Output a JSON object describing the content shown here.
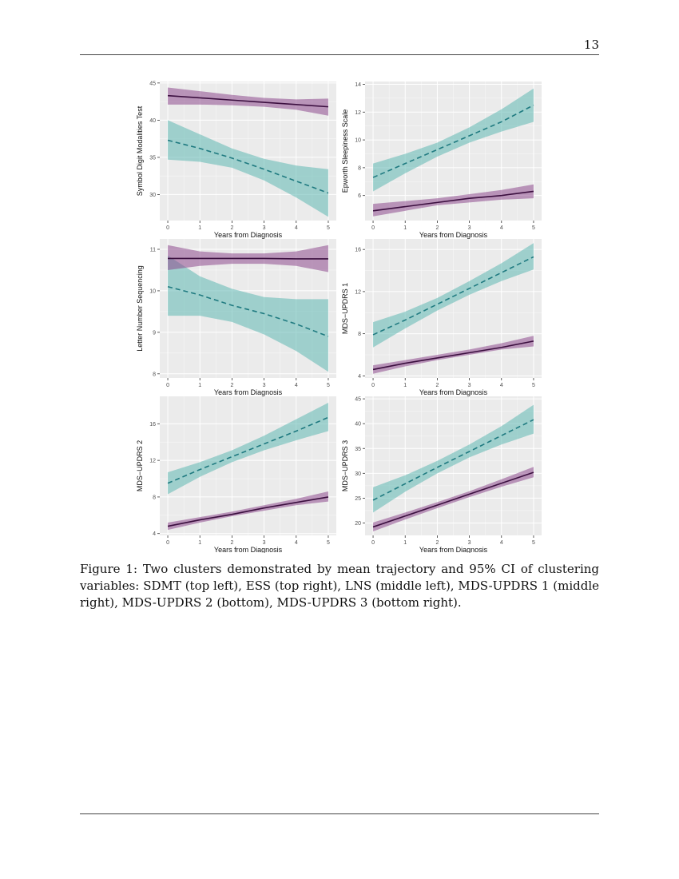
{
  "page_number": "13",
  "caption": "Figure 1: Two clusters demonstrated by mean trajectory and 95% CI of clustering variables: SDMT (top left), ESS (top right), LNS (middle left), MDS-UPDRS 1 (middle right), MDS-UPDRS 2 (bottom), MDS-UPDRS 3 (bottom right).",
  "colors": {
    "panel_background": "#ebebeb",
    "grid": "#ffffff",
    "cluster_purple_line": "#3b0f3f",
    "cluster_purple_band": "#8e4a8e",
    "cluster_teal_line": "#1f7a80",
    "cluster_teal_band": "#5fb8b2"
  },
  "chart_data": [
    {
      "type": "line",
      "ylabel": "Symbol Digit Modalities Test",
      "xlabel": "Years from Diagnosis",
      "x_ticks": [
        0,
        1,
        2,
        3,
        4,
        5
      ],
      "y_ticks": [
        30,
        35,
        40,
        45
      ],
      "xlim": [
        -0.25,
        5.25
      ],
      "ylim": [
        26.5,
        45.2
      ],
      "grid": true,
      "series": [
        {
          "line_style": "solid",
          "color": "#3b0f3f",
          "band_color": "#8e4a8e",
          "x": [
            0,
            1,
            2,
            3,
            4,
            5
          ],
          "y": [
            43.3,
            43.0,
            42.7,
            42.4,
            42.1,
            41.8
          ],
          "lower": [
            42.1,
            42.1,
            42.0,
            41.8,
            41.4,
            40.6
          ],
          "upper": [
            44.4,
            43.9,
            43.4,
            43.0,
            42.8,
            42.9
          ]
        },
        {
          "line_style": "dashed",
          "color": "#1f7a80",
          "band_color": "#5fb8b2",
          "x": [
            0,
            1,
            2,
            3,
            4,
            5
          ],
          "y": [
            37.3,
            36.2,
            34.9,
            33.4,
            31.8,
            30.2
          ],
          "lower": [
            34.7,
            34.4,
            33.6,
            31.9,
            29.6,
            27.0
          ],
          "upper": [
            40.0,
            38.1,
            36.2,
            34.8,
            33.9,
            33.4
          ]
        }
      ]
    },
    {
      "type": "line",
      "ylabel": "Epworth Sleepiness Scale",
      "xlabel": "Years from Diagnosis",
      "x_ticks": [
        0,
        1,
        2,
        3,
        4,
        5
      ],
      "y_ticks": [
        6,
        8,
        10,
        12,
        14
      ],
      "xlim": [
        -0.25,
        5.25
      ],
      "ylim": [
        4.2,
        14.2
      ],
      "grid": true,
      "series": [
        {
          "line_style": "solid",
          "color": "#3b0f3f",
          "band_color": "#8e4a8e",
          "x": [
            0,
            1,
            2,
            3,
            4,
            5
          ],
          "y": [
            4.9,
            5.2,
            5.5,
            5.8,
            6.0,
            6.3
          ],
          "lower": [
            4.5,
            4.9,
            5.3,
            5.5,
            5.7,
            5.8
          ],
          "upper": [
            5.4,
            5.6,
            5.8,
            6.1,
            6.4,
            6.8
          ]
        },
        {
          "line_style": "dashed",
          "color": "#1f7a80",
          "band_color": "#5fb8b2",
          "x": [
            0,
            1,
            2,
            3,
            4,
            5
          ],
          "y": [
            7.3,
            8.3,
            9.3,
            10.3,
            11.3,
            12.5
          ],
          "lower": [
            6.3,
            7.6,
            8.8,
            9.8,
            10.6,
            11.3
          ],
          "upper": [
            8.3,
            9.0,
            9.8,
            10.9,
            12.2,
            13.7
          ]
        }
      ]
    },
    {
      "type": "line",
      "ylabel": "Letter Number Sequencing",
      "xlabel": "Years from Diagnosis",
      "x_ticks": [
        0,
        1,
        2,
        3,
        4,
        5
      ],
      "y_ticks": [
        8,
        9,
        10,
        11
      ],
      "xlim": [
        -0.25,
        5.25
      ],
      "ylim": [
        7.9,
        11.25
      ],
      "grid": true,
      "series": [
        {
          "line_style": "solid",
          "color": "#3b0f3f",
          "band_color": "#8e4a8e",
          "x": [
            0,
            1,
            2,
            3,
            4,
            5
          ],
          "y": [
            10.78,
            10.78,
            10.78,
            10.78,
            10.77,
            10.77
          ],
          "lower": [
            10.5,
            10.6,
            10.65,
            10.65,
            10.6,
            10.45
          ],
          "upper": [
            11.1,
            10.95,
            10.9,
            10.9,
            10.95,
            11.1
          ]
        },
        {
          "line_style": "dashed",
          "color": "#1f7a80",
          "band_color": "#5fb8b2",
          "x": [
            0,
            1,
            2,
            3,
            4,
            5
          ],
          "y": [
            10.1,
            9.9,
            9.65,
            9.45,
            9.2,
            8.9
          ],
          "lower": [
            9.4,
            9.4,
            9.25,
            8.95,
            8.55,
            8.05
          ],
          "upper": [
            10.85,
            10.35,
            10.05,
            9.85,
            9.8,
            9.8
          ]
        }
      ]
    },
    {
      "type": "line",
      "ylabel": "MDS−UPDRS 1",
      "xlabel": "Years from Diagnosis",
      "x_ticks": [
        0,
        1,
        2,
        3,
        4,
        5
      ],
      "y_ticks": [
        4,
        8,
        12,
        16
      ],
      "xlim": [
        -0.25,
        5.25
      ],
      "ylim": [
        3.8,
        17.0
      ],
      "grid": true,
      "series": [
        {
          "line_style": "solid",
          "color": "#3b0f3f",
          "band_color": "#8e4a8e",
          "x": [
            0,
            1,
            2,
            3,
            4,
            5
          ],
          "y": [
            4.6,
            5.2,
            5.7,
            6.2,
            6.7,
            7.3
          ],
          "lower": [
            4.2,
            4.9,
            5.5,
            6.0,
            6.5,
            6.8
          ],
          "upper": [
            5.0,
            5.5,
            6.0,
            6.5,
            7.1,
            7.8
          ]
        },
        {
          "line_style": "dashed",
          "color": "#1f7a80",
          "band_color": "#5fb8b2",
          "x": [
            0,
            1,
            2,
            3,
            4,
            5
          ],
          "y": [
            7.9,
            9.3,
            10.8,
            12.3,
            13.8,
            15.3
          ],
          "lower": [
            6.7,
            8.5,
            10.2,
            11.7,
            13.0,
            14.1
          ],
          "upper": [
            9.1,
            10.1,
            11.4,
            13.0,
            14.7,
            16.6
          ]
        }
      ]
    },
    {
      "type": "line",
      "ylabel": "MDS−UPDRS 2",
      "xlabel": "Years from Diagnosis",
      "x_ticks": [
        0,
        1,
        2,
        3,
        4,
        5
      ],
      "y_ticks": [
        4,
        8,
        12,
        16
      ],
      "xlim": [
        -0.25,
        5.25
      ],
      "ylim": [
        3.8,
        19.0
      ],
      "grid": true,
      "series": [
        {
          "line_style": "solid",
          "color": "#3b0f3f",
          "band_color": "#8e4a8e",
          "x": [
            0,
            1,
            2,
            3,
            4,
            5
          ],
          "y": [
            4.8,
            5.5,
            6.1,
            6.8,
            7.4,
            8.0
          ],
          "lower": [
            4.4,
            5.2,
            5.9,
            6.5,
            7.1,
            7.5
          ],
          "upper": [
            5.2,
            5.8,
            6.4,
            7.1,
            7.8,
            8.6
          ]
        },
        {
          "line_style": "dashed",
          "color": "#1f7a80",
          "band_color": "#5fb8b2",
          "x": [
            0,
            1,
            2,
            3,
            4,
            5
          ],
          "y": [
            9.5,
            11.0,
            12.4,
            13.8,
            15.2,
            16.7
          ],
          "lower": [
            8.3,
            10.2,
            11.8,
            13.1,
            14.2,
            15.2
          ],
          "upper": [
            10.7,
            11.8,
            13.1,
            14.7,
            16.5,
            18.3
          ]
        }
      ]
    },
    {
      "type": "line",
      "ylabel": "MDS−UPDRS 3",
      "xlabel": "Years from Diagnosis",
      "x_ticks": [
        0,
        1,
        2,
        3,
        4,
        5
      ],
      "y_ticks": [
        20,
        25,
        30,
        35,
        40,
        45
      ],
      "xlim": [
        -0.25,
        5.25
      ],
      "ylim": [
        17.5,
        45.5
      ],
      "grid": true,
      "series": [
        {
          "line_style": "solid",
          "color": "#3b0f3f",
          "band_color": "#8e4a8e",
          "x": [
            0,
            1,
            2,
            3,
            4,
            5
          ],
          "y": [
            19.2,
            21.4,
            23.6,
            25.8,
            28.0,
            30.2
          ],
          "lower": [
            18.3,
            20.7,
            23.0,
            25.2,
            27.3,
            29.2
          ],
          "upper": [
            20.1,
            22.1,
            24.2,
            26.4,
            28.8,
            31.3
          ]
        },
        {
          "line_style": "dashed",
          "color": "#1f7a80",
          "band_color": "#5fb8b2",
          "x": [
            0,
            1,
            2,
            3,
            4,
            5
          ],
          "y": [
            24.6,
            27.9,
            31.2,
            34.4,
            37.6,
            40.8
          ],
          "lower": [
            22.1,
            26.3,
            30.0,
            33.2,
            35.8,
            38.0
          ],
          "upper": [
            27.2,
            29.6,
            32.5,
            35.8,
            39.5,
            43.8
          ]
        }
      ]
    }
  ]
}
